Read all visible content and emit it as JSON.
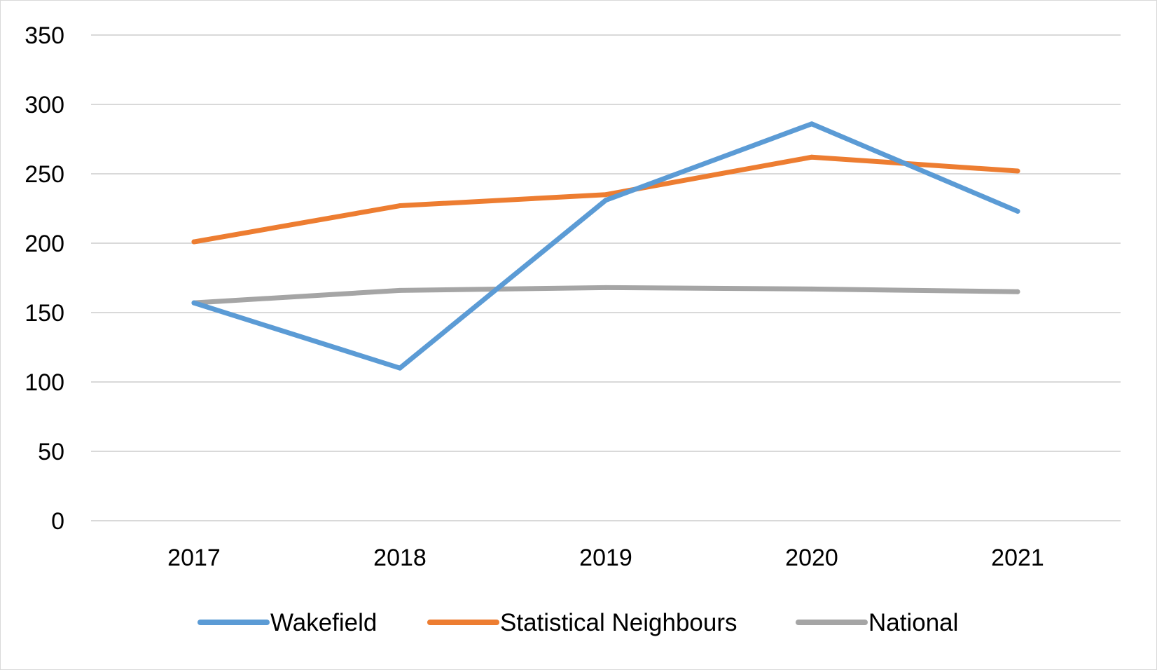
{
  "chart_data": {
    "type": "line",
    "categories": [
      "2017",
      "2018",
      "2019",
      "2020",
      "2021"
    ],
    "series": [
      {
        "name": "Wakefield",
        "color": "#5B9BD5",
        "values": [
          157,
          110,
          231,
          286,
          223
        ]
      },
      {
        "name": "Statistical Neighbours",
        "color": "#ED7D31",
        "values": [
          201,
          227,
          235,
          262,
          252
        ]
      },
      {
        "name": "National",
        "color": "#A5A5A5",
        "values": [
          157,
          166,
          168,
          167,
          165
        ]
      }
    ],
    "ylim": [
      0,
      350
    ],
    "yticks": [
      "0",
      "50",
      "100",
      "150",
      "200",
      "250",
      "300",
      "350"
    ],
    "grid": true,
    "legend_position": "bottom",
    "gridline_color": "#d9d9d9"
  }
}
